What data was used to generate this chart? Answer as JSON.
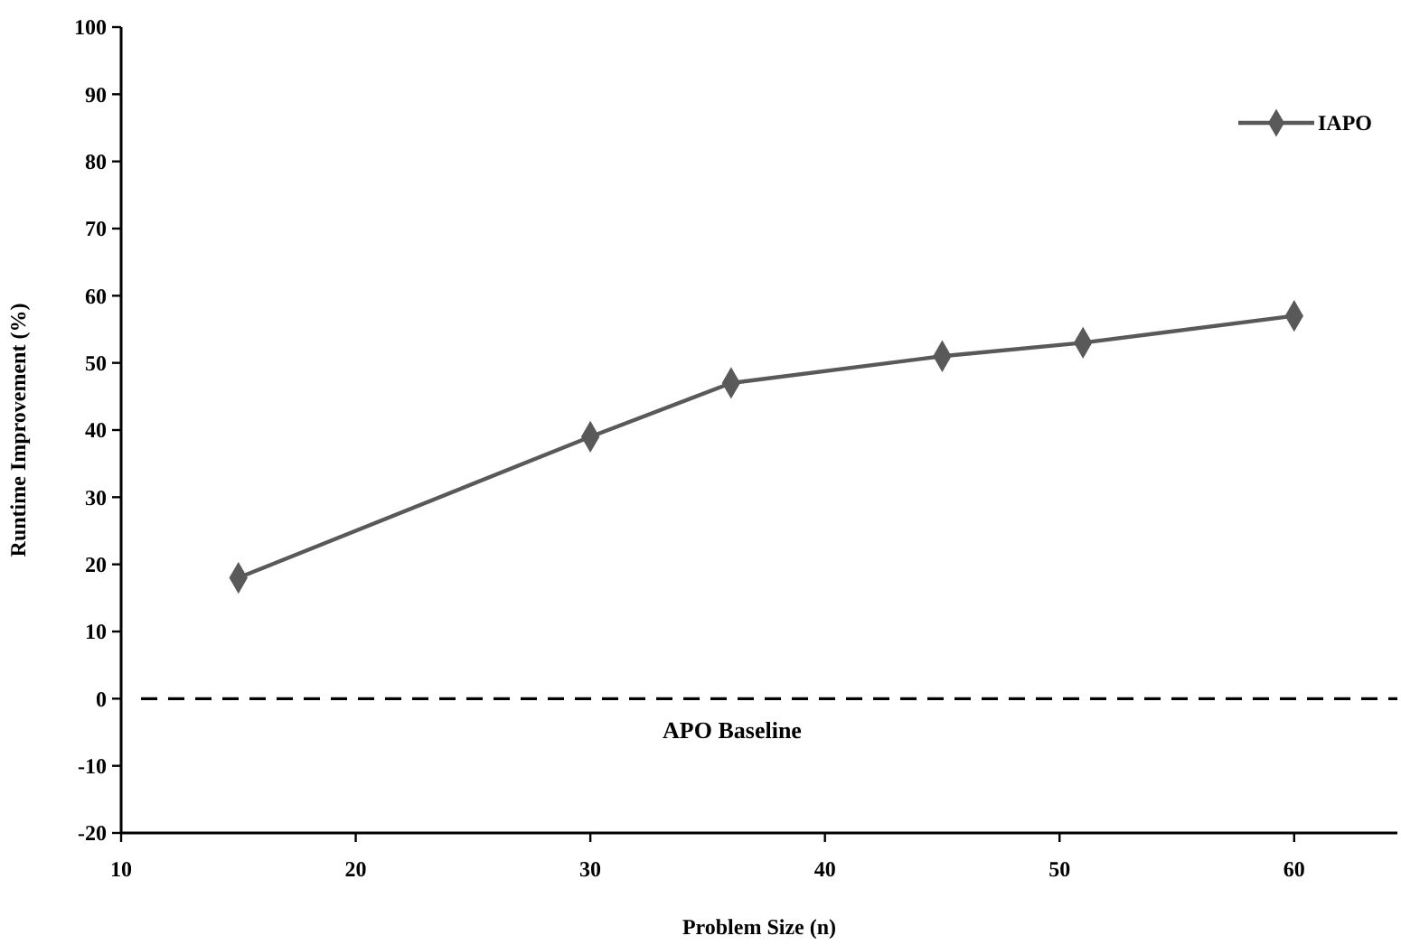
{
  "chart_data": {
    "type": "line",
    "xlabel": "Problem Size (n)",
    "ylabel": "Runtime Improvement (%)",
    "x": [
      15,
      30,
      36,
      45,
      51,
      60
    ],
    "series": [
      {
        "name": "IAPO",
        "color": "#595959",
        "values": [
          18,
          39,
          47,
          51,
          53,
          57
        ]
      }
    ],
    "xlim": [
      10,
      64.4
    ],
    "xticks": [
      10,
      20,
      30,
      40,
      50,
      60
    ],
    "ylim": [
      -20,
      100
    ],
    "yticks": [
      -20,
      -10,
      0,
      10,
      20,
      30,
      40,
      50,
      60,
      70,
      80,
      90,
      100
    ],
    "ref_lines": [
      {
        "axis": "y",
        "value": 0,
        "label": "APO Baseline",
        "color": "#000000",
        "line_style": "dashed"
      }
    ],
    "grid": false,
    "legend": "top right",
    "marker": "diamond",
    "line_style": "solid"
  }
}
